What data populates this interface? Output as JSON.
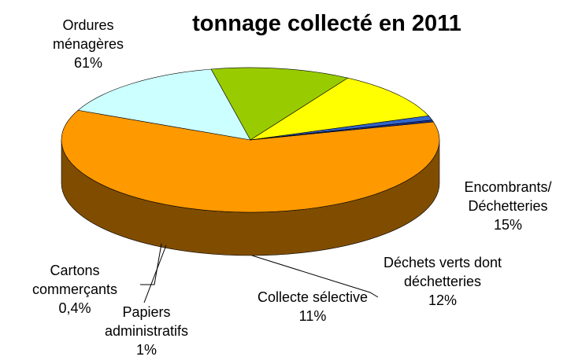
{
  "chart_data": {
    "type": "pie3d",
    "title": "tonnage collecté en 2011",
    "categories": [
      "Ordures\nménagères",
      "Encombrants/\nDéchetteries",
      "Déchets verts dont\ndéchetteries",
      "Collecte sélective",
      "Papiers\nadministratifs",
      "Cartons\ncommerçants"
    ],
    "values": [
      61,
      15,
      12,
      11,
      1,
      0.4
    ],
    "value_labels": [
      "61%",
      "15%",
      "12%",
      "11%",
      "1%",
      "0,4%"
    ],
    "colors": [
      "#ff9900",
      "#ccffff",
      "#99cc00",
      "#ffff00",
      "#3366cc",
      "#1a3399"
    ]
  }
}
